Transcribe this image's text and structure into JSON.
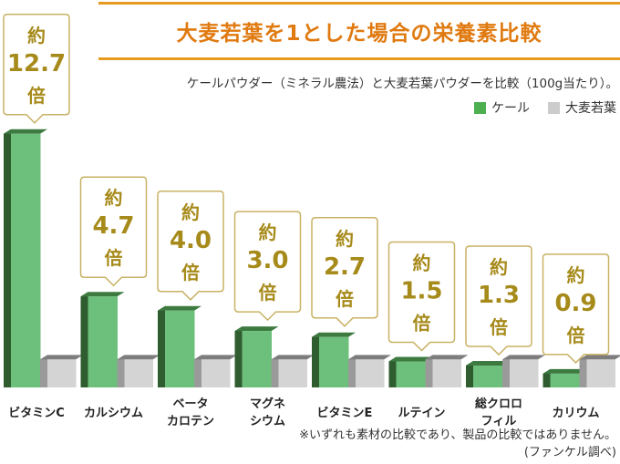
{
  "title": "大麦若葉を1とした場合の栄養素比較",
  "subtitle": "ケールパウダー（ミネラル農法）と大麦若葉パウダーを比較（100g当たり）。",
  "legend": {
    "kale": "ケール",
    "barley": "大麦若葉"
  },
  "colors": {
    "kale_front": "#6cc07b",
    "kale_side": "#2f5d30",
    "kale_top": "#3d7a40",
    "barley_front": "#d4d4d4",
    "barley_side": "#9a9a9a",
    "barley_top": "#7d7d7d",
    "title": "#e07a10",
    "title_rule": "#e69a1f",
    "callout_text": "#a68a1a",
    "callout_border": "#c9b264"
  },
  "chart_data": {
    "type": "bar",
    "categories": [
      [
        "ビタミンC"
      ],
      [
        "カルシウム"
      ],
      [
        "ベータ",
        "カロテン"
      ],
      [
        "マグネ",
        "シウム"
      ],
      [
        "ビタミンE"
      ],
      [
        "ルテイン"
      ],
      [
        "総クロロ",
        "フィル"
      ],
      [
        "カリウム"
      ]
    ],
    "series": [
      {
        "name": "ケール",
        "values": [
          12.7,
          4.7,
          4.0,
          3.0,
          2.7,
          1.5,
          1.3,
          0.9
        ]
      },
      {
        "name": "大麦若葉",
        "values": [
          1,
          1,
          1,
          1,
          1,
          1,
          1,
          1
        ]
      }
    ],
    "callouts": [
      {
        "prefix": "約",
        "value": "12.7",
        "suffix": "倍"
      },
      {
        "prefix": "約",
        "value": "4.7",
        "suffix": "倍"
      },
      {
        "prefix": "約",
        "value": "4.0",
        "suffix": "倍"
      },
      {
        "prefix": "約",
        "value": "3.0",
        "suffix": "倍"
      },
      {
        "prefix": "約",
        "value": "2.7",
        "suffix": "倍"
      },
      {
        "prefix": "約",
        "value": "1.5",
        "suffix": "倍"
      },
      {
        "prefix": "約",
        "value": "1.3",
        "suffix": "倍"
      },
      {
        "prefix": "約",
        "value": "0.9",
        "suffix": "倍"
      }
    ],
    "grid": false,
    "legend_position": "top-right"
  },
  "footnote": {
    "line1": "※いずれも素材の比較であり、製品の比較ではありません。",
    "line2": "(ファンケル調べ)"
  }
}
